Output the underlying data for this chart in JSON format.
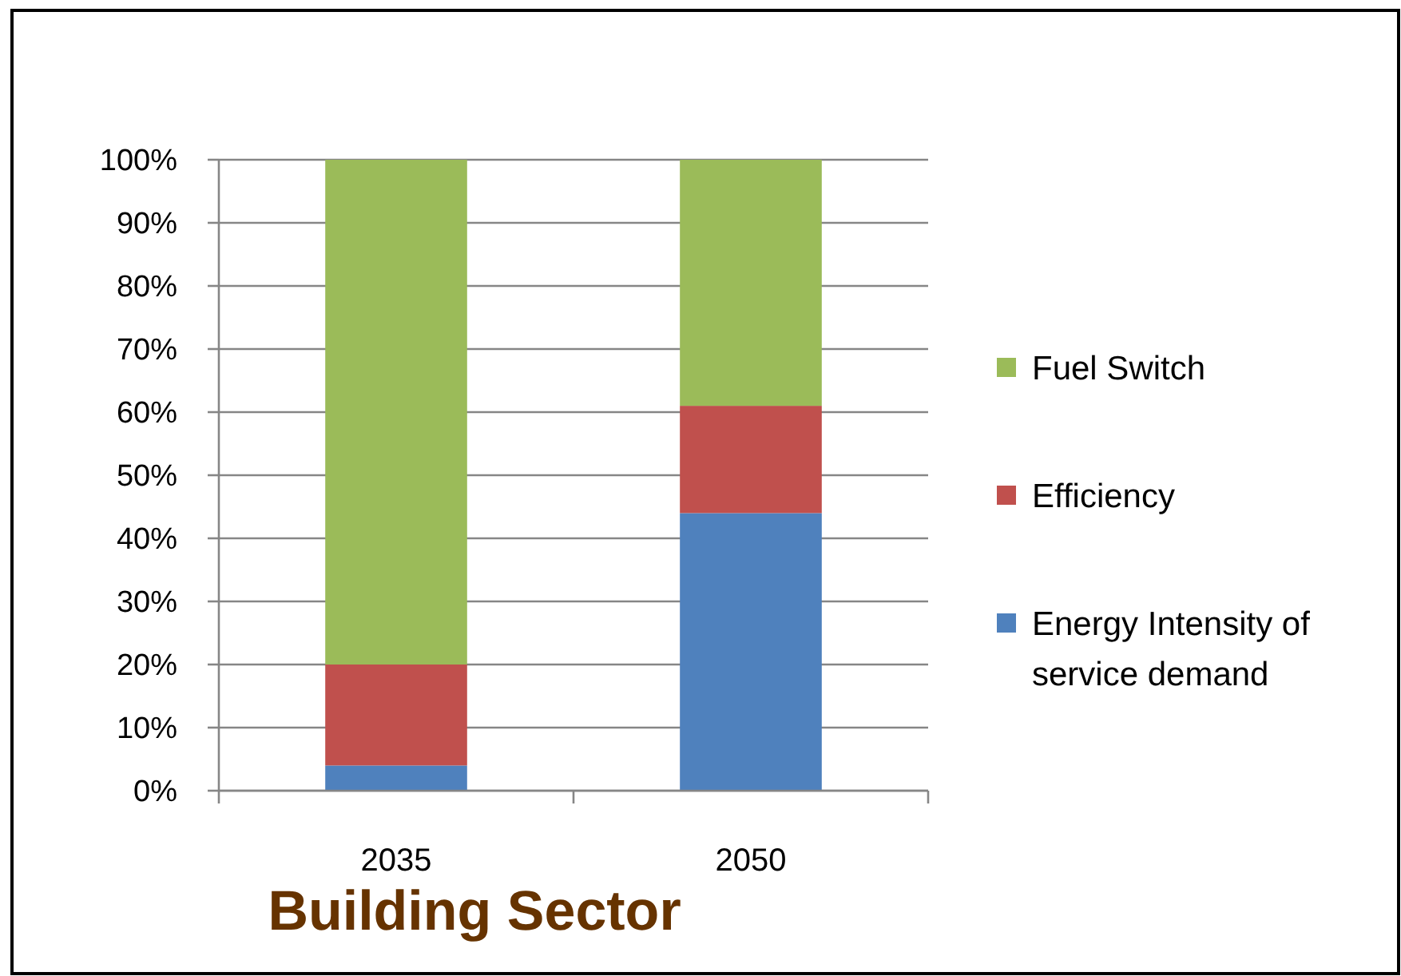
{
  "chart_data": {
    "type": "bar",
    "stacked": true,
    "xlabel": "Building Sector",
    "categories": [
      "2035",
      "2050"
    ],
    "series": [
      {
        "name": "Energy Intensity of service demand",
        "color": "#4f81bd",
        "values": [
          4,
          44
        ]
      },
      {
        "name": "Efficiency",
        "color": "#c0504d",
        "values": [
          16,
          17
        ]
      },
      {
        "name": "Fuel Switch",
        "color": "#9bbb59",
        "values": [
          80,
          39
        ]
      }
    ],
    "ylim": [
      0,
      100
    ],
    "yticks": [
      {
        "value": 0,
        "label": "0%"
      },
      {
        "value": 10,
        "label": "10%"
      },
      {
        "value": 20,
        "label": "20%"
      },
      {
        "value": 30,
        "label": "30%"
      },
      {
        "value": 40,
        "label": "40%"
      },
      {
        "value": 50,
        "label": "50%"
      },
      {
        "value": 60,
        "label": "60%"
      },
      {
        "value": 70,
        "label": "70%"
      },
      {
        "value": 80,
        "label": "80%"
      },
      {
        "value": 90,
        "label": "90%"
      },
      {
        "value": 100,
        "label": "100%"
      }
    ],
    "grid": "y",
    "legend": "right"
  }
}
